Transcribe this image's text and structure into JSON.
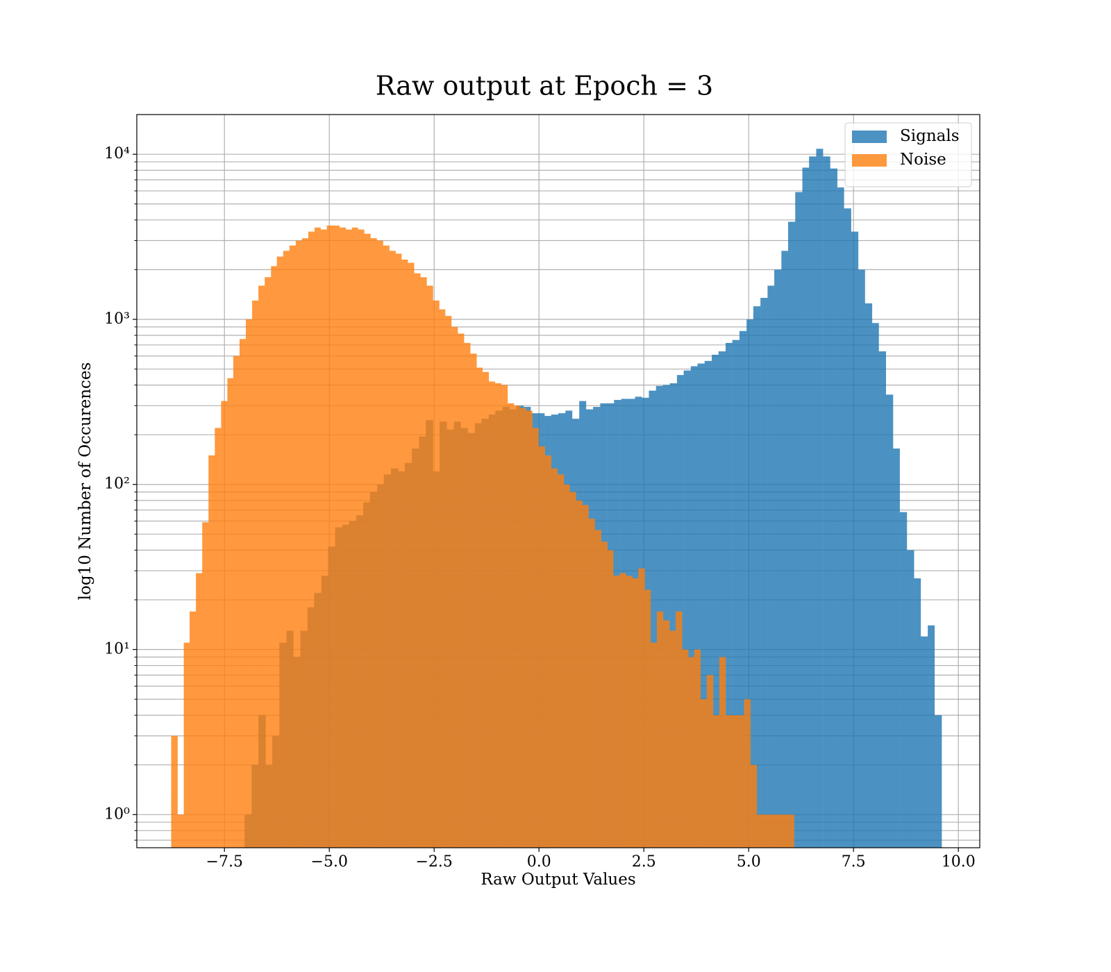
{
  "chart_data": {
    "type": "histogram",
    "title": "Raw output at Epoch = 3",
    "xlabel": "Raw Output Values",
    "ylabel": "log10 Number of Occurences",
    "yscale": "log",
    "grid": true,
    "legend": "upper right",
    "xlim": [
      -9.59,
      10.51
    ],
    "ylim": [
      0.63,
      17400
    ],
    "xticks": [
      {
        "value": -7.5,
        "label": "−7.5"
      },
      {
        "value": -5.0,
        "label": "−5.0"
      },
      {
        "value": -2.5,
        "label": "−2.5"
      },
      {
        "value": 0.0,
        "label": "0.0"
      },
      {
        "value": 2.5,
        "label": "2.5"
      },
      {
        "value": 5.0,
        "label": "5.0"
      },
      {
        "value": 7.5,
        "label": "7.5"
      },
      {
        "value": 10.0,
        "label": "10.0"
      }
    ],
    "yticks": [
      {
        "value": 1,
        "label": "10⁰"
      },
      {
        "value": 10,
        "label": "10¹"
      },
      {
        "value": 100,
        "label": "10²"
      },
      {
        "value": 1000,
        "label": "10³"
      },
      {
        "value": 10000,
        "label": "10⁴"
      }
    ],
    "yminorticks": [
      0.7,
      0.8,
      0.9,
      2,
      3,
      4,
      5,
      6,
      7,
      8,
      9,
      20,
      30,
      40,
      50,
      60,
      70,
      80,
      90,
      200,
      300,
      400,
      500,
      600,
      700,
      800,
      900,
      2000,
      3000,
      4000,
      5000,
      6000,
      7000,
      8000,
      9000
    ],
    "series": [
      {
        "name": "Signals",
        "color": "#1f77b4",
        "alpha": 0.8,
        "bins": [
          -7.02,
          -6.85,
          -6.69,
          -6.52,
          -6.36,
          -6.19,
          -6.02,
          -5.86,
          -5.69,
          -5.52,
          -5.36,
          -5.19,
          -5.03,
          -4.86,
          -4.69,
          -4.53,
          -4.36,
          -4.19,
          -4.03,
          -3.86,
          -3.7,
          -3.53,
          -3.36,
          -3.2,
          -3.03,
          -2.86,
          -2.7,
          -2.53,
          -2.37,
          -2.2,
          -2.03,
          -1.87,
          -1.7,
          -1.53,
          -1.37,
          -1.2,
          -1.04,
          -0.87,
          -0.7,
          -0.54,
          -0.37,
          -0.2,
          -0.04,
          0.13,
          0.29,
          0.46,
          0.63,
          0.79,
          0.96,
          1.12,
          1.29,
          1.46,
          1.62,
          1.79,
          1.96,
          2.12,
          2.29,
          2.45,
          2.62,
          2.79,
          2.95,
          3.12,
          3.29,
          3.45,
          3.62,
          3.78,
          3.95,
          4.12,
          4.28,
          4.45,
          4.61,
          4.78,
          4.95,
          5.11,
          5.28,
          5.45,
          5.61,
          5.78,
          5.94,
          6.11,
          6.28,
          6.44,
          6.61,
          6.77,
          6.94,
          7.11,
          7.27,
          7.44,
          7.61,
          7.77,
          7.94,
          8.1,
          8.27,
          8.44,
          8.6,
          8.77,
          8.94,
          9.1,
          9.27,
          9.43,
          9.6
        ],
        "values": [
          1,
          2,
          4,
          2,
          3,
          11,
          13,
          9,
          13,
          18,
          22,
          28,
          42,
          55,
          57,
          60,
          65,
          78,
          90,
          100,
          115,
          125,
          120,
          135,
          165,
          195,
          245,
          120,
          240,
          215,
          240,
          220,
          205,
          235,
          250,
          265,
          280,
          295,
          285,
          300,
          295,
          270,
          270,
          260,
          265,
          270,
          280,
          250,
          320,
          285,
          295,
          310,
          310,
          325,
          330,
          330,
          340,
          335,
          370,
          395,
          400,
          410,
          460,
          490,
          520,
          540,
          560,
          610,
          640,
          720,
          750,
          850,
          1000,
          1200,
          1350,
          1600,
          2000,
          2600,
          3900,
          5900,
          8300,
          9700,
          10800,
          9700,
          8200,
          6300,
          4700,
          3400,
          2000,
          1250,
          950,
          640,
          350,
          165,
          68,
          40,
          27,
          12,
          14,
          4
        ]
      },
      {
        "name": "Noise",
        "color": "#ff7f0e",
        "alpha": 0.8,
        "bins": [
          -8.77,
          -8.62,
          -8.47,
          -8.33,
          -8.18,
          -8.03,
          -7.88,
          -7.73,
          -7.58,
          -7.43,
          -7.29,
          -7.14,
          -6.99,
          -6.84,
          -6.69,
          -6.54,
          -6.39,
          -6.25,
          -6.1,
          -5.95,
          -5.8,
          -5.65,
          -5.5,
          -5.35,
          -5.21,
          -5.06,
          -4.91,
          -4.76,
          -4.61,
          -4.46,
          -4.32,
          -4.17,
          -4.02,
          -3.87,
          -3.72,
          -3.57,
          -3.42,
          -3.28,
          -3.13,
          -2.98,
          -2.83,
          -2.68,
          -2.53,
          -2.38,
          -2.24,
          -2.09,
          -1.94,
          -1.79,
          -1.64,
          -1.49,
          -1.35,
          -1.2,
          -1.05,
          -0.9,
          -0.75,
          -0.6,
          -0.45,
          -0.31,
          -0.16,
          -0.01,
          0.14,
          0.29,
          0.44,
          0.59,
          0.73,
          0.88,
          1.03,
          1.18,
          1.33,
          1.48,
          1.63,
          1.77,
          1.92,
          2.07,
          2.22,
          2.37,
          2.52,
          2.66,
          2.81,
          2.96,
          3.11,
          3.26,
          3.41,
          3.56,
          3.7,
          3.85,
          4.0,
          4.15,
          4.3,
          4.45,
          4.6,
          4.74,
          4.89,
          5.04,
          5.19,
          5.34,
          5.49,
          5.63,
          5.78,
          5.93,
          6.08
        ],
        "values": [
          3,
          1,
          11,
          17,
          29,
          59,
          150,
          220,
          320,
          440,
          600,
          760,
          1000,
          1300,
          1600,
          1800,
          2100,
          2400,
          2600,
          2800,
          3000,
          3100,
          3400,
          3600,
          3500,
          3700,
          3700,
          3600,
          3500,
          3600,
          3500,
          3300,
          3100,
          3000,
          2800,
          2600,
          2500,
          2300,
          2200,
          1900,
          1800,
          1600,
          1300,
          1150,
          1050,
          900,
          820,
          720,
          620,
          510,
          480,
          420,
          410,
          400,
          310,
          300,
          290,
          280,
          220,
          170,
          150,
          125,
          115,
          100,
          90,
          80,
          75,
          62,
          53,
          45,
          40,
          28,
          29,
          28,
          27,
          31,
          23,
          11,
          17,
          15,
          13,
          17,
          10,
          9,
          10,
          5,
          7,
          4,
          9,
          4,
          4,
          4,
          5,
          2,
          1,
          1,
          1,
          1,
          1,
          1
        ]
      }
    ]
  }
}
